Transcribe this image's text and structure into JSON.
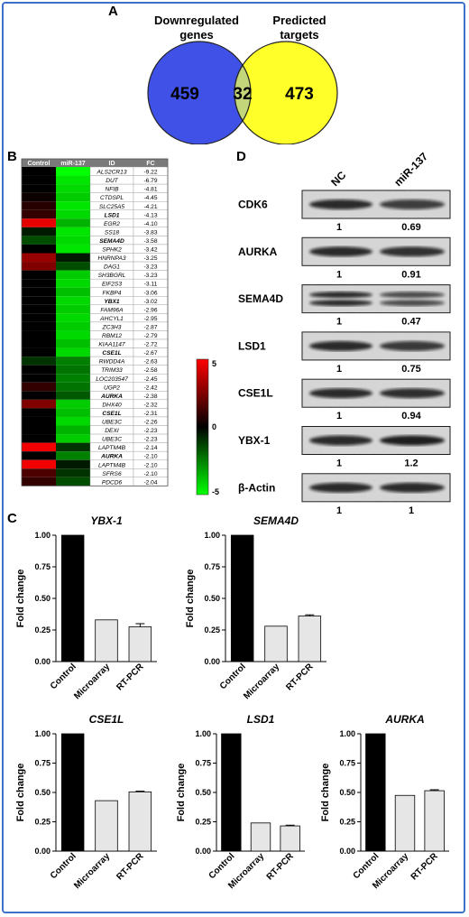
{
  "panels": {
    "A": "A",
    "B": "B",
    "C": "C",
    "D": "D"
  },
  "venn": {
    "left_label": [
      "Downregulated",
      "genes"
    ],
    "right_label": [
      "Predicted",
      "targets"
    ],
    "left_count": "459",
    "overlap_count": "32",
    "right_count": "473",
    "left_color": "#3f51e6",
    "right_color": "#ffff2a",
    "overlap_color": "#c3d67a"
  },
  "heatmap": {
    "headers": [
      "Control",
      "miR-137",
      "ID",
      "FC"
    ],
    "colorbar_labels": [
      "5",
      "0",
      "-5"
    ],
    "rows": [
      {
        "id": "ALS2CR13",
        "fc": "-9.22",
        "c": 0,
        "m": -1.0,
        "bold": false
      },
      {
        "id": "DUT",
        "fc": "-6.79",
        "c": 0,
        "m": -0.9,
        "bold": false
      },
      {
        "id": "NFIB",
        "fc": "-4.81",
        "c": 0,
        "m": -0.85,
        "bold": false
      },
      {
        "id": "CTDSPL",
        "fc": "-4.45",
        "c": 0.05,
        "m": -0.8,
        "bold": false
      },
      {
        "id": "SLC25A5",
        "fc": "-4.21",
        "c": 0.15,
        "m": -0.9,
        "bold": false
      },
      {
        "id": "LSD1",
        "fc": "-4.13",
        "c": 0.2,
        "m": -0.85,
        "bold": true
      },
      {
        "id": "EGR2",
        "fc": "-4.10",
        "c": 0.9,
        "m": -0.7,
        "bold": false
      },
      {
        "id": "SS18",
        "fc": "-3.83",
        "c": -0.1,
        "m": -0.9,
        "bold": false
      },
      {
        "id": "SEMA4D",
        "fc": "-3.58",
        "c": -0.3,
        "m": -0.85,
        "bold": true
      },
      {
        "id": "SPHK2",
        "fc": "-3.42",
        "c": 0,
        "m": -0.9,
        "bold": false
      },
      {
        "id": "HNRNPA3",
        "fc": "-3.25",
        "c": 0.6,
        "m": -0.1,
        "bold": false
      },
      {
        "id": "DAG1",
        "fc": "-3.23",
        "c": 0.5,
        "m": -0.3,
        "bold": false
      },
      {
        "id": "SH3BGRL",
        "fc": "-3.23",
        "c": 0,
        "m": -0.8,
        "bold": false
      },
      {
        "id": "EIF2S3",
        "fc": "-3.11",
        "c": 0,
        "m": -0.85,
        "bold": false
      },
      {
        "id": "FKBP4",
        "fc": "-3.06",
        "c": 0,
        "m": -0.75,
        "bold": false
      },
      {
        "id": "YBX1",
        "fc": "-3.02",
        "c": 0,
        "m": -0.85,
        "bold": true
      },
      {
        "id": "FAM96A",
        "fc": "-2.96",
        "c": 0,
        "m": -0.8,
        "bold": false
      },
      {
        "id": "AHCYL1",
        "fc": "-2.95",
        "c": 0,
        "m": -0.85,
        "bold": false
      },
      {
        "id": "ZC3H3",
        "fc": "-2.87",
        "c": 0,
        "m": -0.8,
        "bold": false
      },
      {
        "id": "RBM12",
        "fc": "-2.79",
        "c": 0,
        "m": -0.85,
        "bold": false
      },
      {
        "id": "KIAA1147",
        "fc": "-2.72",
        "c": 0,
        "m": -0.75,
        "bold": false
      },
      {
        "id": "CSE1L",
        "fc": "-2.67",
        "c": 0,
        "m": -0.85,
        "bold": true
      },
      {
        "id": "RWDD4A",
        "fc": "-2.63",
        "c": -0.2,
        "m": -0.5,
        "bold": false
      },
      {
        "id": "TRIM33",
        "fc": "-2.58",
        "c": 0,
        "m": -0.45,
        "bold": false
      },
      {
        "id": "LOC203547",
        "fc": "-2.45",
        "c": 0,
        "m": -0.5,
        "bold": false
      },
      {
        "id": "UGP2",
        "fc": "-2.42",
        "c": 0.2,
        "m": -0.45,
        "bold": false
      },
      {
        "id": "AURKA",
        "fc": "-2.38",
        "c": 0,
        "m": -0.35,
        "bold": true
      },
      {
        "id": "DHX40",
        "fc": "-2.32",
        "c": 0.5,
        "m": -0.8,
        "bold": false
      },
      {
        "id": "CSE1L",
        "fc": "-2.31",
        "c": 0,
        "m": -0.75,
        "bold": true
      },
      {
        "id": "UBE3C",
        "fc": "-2.26",
        "c": 0,
        "m": -0.85,
        "bold": false
      },
      {
        "id": "DEXI",
        "fc": "-2.23",
        "c": 0,
        "m": -0.7,
        "bold": false
      },
      {
        "id": "UBE3C",
        "fc": "-2.23",
        "c": 0,
        "m": -0.8,
        "bold": false
      },
      {
        "id": "LAPTM4B",
        "fc": "-2.14",
        "c": 0.95,
        "m": -0.2,
        "bold": false
      },
      {
        "id": "AURKA",
        "fc": "-2.10",
        "c": 0,
        "m": -0.5,
        "bold": true
      },
      {
        "id": "LAPTM4B",
        "fc": "-2.10",
        "c": 0.95,
        "m": -0.1,
        "bold": false
      },
      {
        "id": "SFRS6",
        "fc": "-2.10",
        "c": 0.3,
        "m": -0.2,
        "bold": false
      },
      {
        "id": "PDCD6",
        "fc": "-2.04",
        "c": 0.2,
        "m": -0.3,
        "bold": false
      }
    ]
  },
  "western": {
    "columns": [
      "NC",
      "miR-137"
    ],
    "blots": [
      {
        "label": "CDK6",
        "values": [
          "1",
          "0.69"
        ]
      },
      {
        "label": "AURKA",
        "values": [
          "1",
          "0.91"
        ]
      },
      {
        "label": "SEMA4D",
        "values": [
          "1",
          "0.47"
        ]
      },
      {
        "label": "LSD1",
        "values": [
          "1",
          "0.75"
        ]
      },
      {
        "label": "CSE1L",
        "values": [
          "1",
          "0.94"
        ]
      },
      {
        "label": "YBX-1",
        "values": [
          "1",
          "1.2"
        ]
      },
      {
        "label": "β-Actin",
        "values": [
          "1",
          "1"
        ]
      }
    ]
  },
  "chart_data": [
    {
      "type": "bar",
      "title": "YBX-1",
      "ylabel": "Fold change",
      "categories": [
        "Control",
        "Microarray",
        "RT-PCR"
      ],
      "values": [
        1.0,
        0.33,
        0.275
      ],
      "errors": [
        0,
        0,
        0.025
      ],
      "ylim": [
        0,
        1.0
      ],
      "yticks": [
        "0.00",
        "0.25",
        "0.50",
        "0.75",
        "1.00"
      ]
    },
    {
      "type": "bar",
      "title": "SEMA4D",
      "ylabel": "Fold change",
      "categories": [
        "Control",
        "Microarray",
        "RT-PCR"
      ],
      "values": [
        1.0,
        0.28,
        0.36
      ],
      "errors": [
        0,
        0,
        0.01
      ],
      "ylim": [
        0,
        1.0
      ],
      "yticks": [
        "0.00",
        "0.25",
        "0.50",
        "0.75",
        "1.00"
      ]
    },
    {
      "type": "bar",
      "title": "CSE1L",
      "ylabel": "Fold change",
      "categories": [
        "Control",
        "Microarray",
        "RT-PCR"
      ],
      "values": [
        1.0,
        0.43,
        0.505
      ],
      "errors": [
        0,
        0,
        0.006
      ],
      "ylim": [
        0,
        1.0
      ],
      "yticks": [
        "0.00",
        "0.25",
        "0.50",
        "0.75",
        "1.00"
      ]
    },
    {
      "type": "bar",
      "title": "LSD1",
      "ylabel": "Fold change",
      "categories": [
        "Control",
        "Microarray",
        "RT-PCR"
      ],
      "values": [
        1.0,
        0.24,
        0.215
      ],
      "errors": [
        0,
        0,
        0.006
      ],
      "ylim": [
        0,
        1.0
      ],
      "yticks": [
        "0.00",
        "0.25",
        "0.50",
        "0.75",
        "1.00"
      ]
    },
    {
      "type": "bar",
      "title": "AURKA",
      "ylabel": "Fold change",
      "categories": [
        "Control",
        "Microarray",
        "RT-PCR"
      ],
      "values": [
        1.0,
        0.475,
        0.515
      ],
      "errors": [
        0,
        0,
        0.008
      ],
      "ylim": [
        0,
        1.0
      ],
      "yticks": [
        "0.00",
        "0.25",
        "0.50",
        "0.75",
        "1.00"
      ]
    }
  ],
  "colors": {
    "control_bar": "#000000",
    "other_bar": "#e6e6e6",
    "frame": "#3b73c9"
  }
}
